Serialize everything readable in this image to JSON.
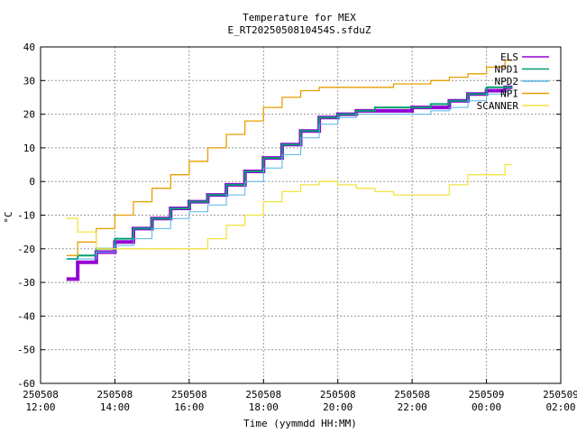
{
  "chart_data": {
    "type": "line",
    "title": "Temperature for MEX",
    "subtitle": "E_RT2025050810454S.sfduZ",
    "xlabel": "Time (yymmdd HH:MM)",
    "ylabel": "°C",
    "ylim": [
      -60,
      40
    ],
    "yticks": [
      -60,
      -50,
      -40,
      -30,
      -20,
      -10,
      0,
      10,
      20,
      30,
      40
    ],
    "xlim": [
      12,
      26
    ],
    "xticks": [
      {
        "t": 12,
        "date": "250508",
        "time": "12:00"
      },
      {
        "t": 14,
        "date": "250508",
        "time": "14:00"
      },
      {
        "t": 16,
        "date": "250508",
        "time": "16:00"
      },
      {
        "t": 18,
        "date": "250508",
        "time": "18:00"
      },
      {
        "t": 20,
        "date": "250508",
        "time": "20:00"
      },
      {
        "t": 22,
        "date": "250508",
        "time": "22:00"
      },
      {
        "t": 24,
        "date": "250509",
        "time": "00:00"
      },
      {
        "t": 26,
        "date": "250509",
        "time": "02:00"
      }
    ],
    "grid": true,
    "legend_position": "top-right",
    "series": [
      {
        "name": "ELS",
        "color": "#9400d3",
        "x": [
          12.7,
          13.0,
          13.5,
          14.0,
          14.5,
          15.0,
          15.5,
          16.0,
          16.5,
          17.0,
          17.5,
          18.0,
          18.5,
          19.0,
          19.5,
          20.0,
          20.5,
          21.0,
          21.5,
          22.0,
          22.5,
          23.0,
          23.5,
          24.0,
          24.5,
          24.7
        ],
        "y": [
          -29,
          -24,
          -21,
          -18,
          -14,
          -11,
          -8,
          -6,
          -4,
          -1,
          3,
          7,
          11,
          15,
          19,
          20,
          21,
          21,
          21,
          22,
          22,
          24,
          26,
          27,
          28,
          28
        ]
      },
      {
        "name": "NPD1",
        "color": "#009e73",
        "x": [
          12.7,
          13.0,
          13.5,
          14.0,
          14.5,
          15.0,
          15.5,
          16.0,
          16.5,
          17.0,
          17.5,
          18.0,
          18.5,
          19.0,
          19.5,
          20.0,
          20.5,
          21.0,
          21.5,
          22.0,
          22.5,
          23.0,
          23.5,
          24.0,
          24.5,
          24.7
        ],
        "y": [
          -23,
          -22,
          -20,
          -17,
          -14,
          -11,
          -8,
          -6,
          -4,
          -1,
          3,
          7,
          11,
          15,
          19,
          20,
          21,
          22,
          22,
          22,
          23,
          24,
          26,
          28,
          28,
          28
        ]
      },
      {
        "name": "NPD2",
        "color": "#56b4e9",
        "x": [
          12.7,
          13.0,
          13.5,
          14.0,
          14.5,
          15.0,
          15.5,
          16.0,
          16.5,
          17.0,
          17.5,
          18.0,
          18.5,
          19.0,
          19.5,
          20.0,
          20.5,
          21.0,
          21.5,
          22.0,
          22.5,
          23.0,
          23.5,
          24.0,
          24.5,
          24.7
        ],
        "y": [
          -23,
          -23,
          -21,
          -19,
          -17,
          -14,
          -11,
          -9,
          -7,
          -4,
          0,
          4,
          8,
          13,
          17,
          19,
          20,
          20,
          20,
          20,
          21,
          22,
          24,
          26,
          27,
          27
        ]
      },
      {
        "name": "NPI",
        "color": "#e69f00",
        "x": [
          12.7,
          13.0,
          13.5,
          14.0,
          14.5,
          15.0,
          15.5,
          16.0,
          16.5,
          17.0,
          17.5,
          18.0,
          18.5,
          19.0,
          19.5,
          20.0,
          20.5,
          21.0,
          21.5,
          22.0,
          22.5,
          23.0,
          23.5,
          24.0,
          24.5,
          24.7
        ],
        "y": [
          -22,
          -18,
          -14,
          -10,
          -6,
          -2,
          2,
          6,
          10,
          14,
          18,
          22,
          25,
          27,
          28,
          28,
          28,
          28,
          29,
          29,
          30,
          31,
          32,
          34,
          36,
          36
        ]
      },
      {
        "name": "SCANNER",
        "color": "#f0e442",
        "x": [
          12.7,
          13.0,
          13.5,
          14.0,
          14.3,
          14.5,
          15.0,
          15.5,
          16.0,
          16.5,
          17.0,
          17.5,
          18.0,
          18.5,
          19.0,
          19.5,
          20.0,
          20.5,
          21.0,
          21.5,
          22.0,
          22.5,
          23.0,
          23.5,
          24.0,
          24.5,
          24.7
        ],
        "y": [
          -11,
          -15,
          -20,
          -20,
          -20,
          -20,
          -20,
          -20,
          -20,
          -17,
          -13,
          -10,
          -6,
          -3,
          -1,
          0,
          -1,
          -2,
          -3,
          -4,
          -4,
          -4,
          -1,
          2,
          2,
          5,
          5
        ]
      }
    ]
  }
}
